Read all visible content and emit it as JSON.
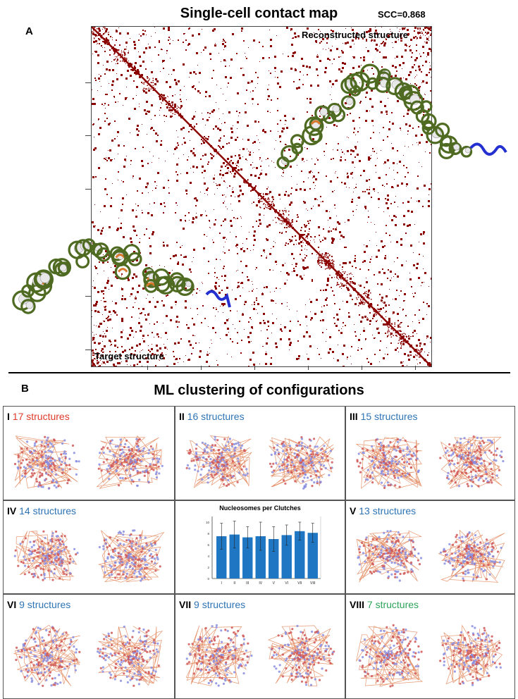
{
  "panel_a": {
    "letter": "A",
    "title": "Single-cell contact map",
    "scc": "SCC=0.868",
    "reconstructed_label": "Reconstructed structure",
    "target_label": "Target structure"
  },
  "panel_b": {
    "letter": "B",
    "title": "ML clustering of configurations",
    "clusters": [
      {
        "roman": "I",
        "count": "17 structures",
        "color": "red"
      },
      {
        "roman": "II",
        "count": "16 structures",
        "color": "blue"
      },
      {
        "roman": "III",
        "count": "15 structures",
        "color": "blue"
      },
      {
        "roman": "IV",
        "count": "14 structures",
        "color": "blue"
      },
      {
        "roman": "V",
        "count": "13 structures",
        "color": "blue"
      },
      {
        "roman": "VI",
        "count": "9 structures",
        "color": "blue"
      },
      {
        "roman": "VII",
        "count": "9 structures",
        "color": "blue"
      },
      {
        "roman": "VIII",
        "count": "7 structures",
        "color": "green"
      }
    ]
  },
  "colors": {
    "map": "#8b0000",
    "fiber": "#4f6b22",
    "bar": "#1f77c4",
    "count_blue": "#2e74b5",
    "count_red": "#e03a2a",
    "count_green": "#2ea45a"
  },
  "chart_data": {
    "type": "bar",
    "title": "Nucleosomes per Clutches",
    "categories": [
      "I",
      "II",
      "III",
      "IV",
      "V",
      "VI",
      "VII",
      "VIII"
    ],
    "values": [
      7.5,
      7.8,
      7.3,
      7.5,
      7.0,
      7.7,
      8.4,
      8.1
    ],
    "error": [
      2.3,
      2.4,
      1.9,
      2.5,
      2.2,
      1.8,
      1.6,
      1.7
    ],
    "y_ticks": [
      "0",
      "2",
      "4",
      "6",
      "8",
      "10"
    ],
    "ylim": [
      0,
      11
    ]
  }
}
